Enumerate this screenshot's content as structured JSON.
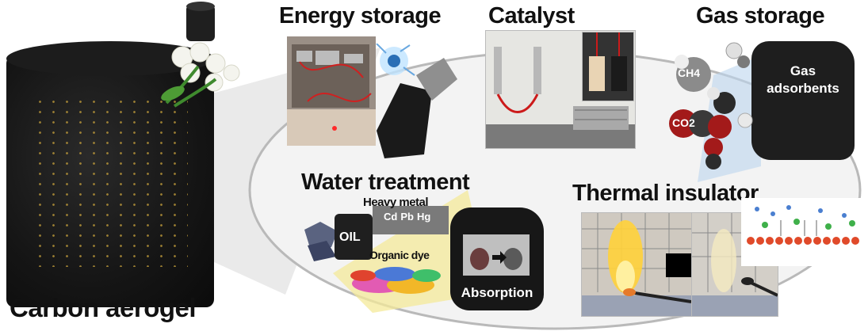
{
  "center_label": "Carbon aerogel",
  "applications": {
    "energy_storage": "Energy storage",
    "catalyst": "Catalyst",
    "gas_storage": "Gas storage",
    "water_treatment": "Water treatment",
    "thermal_insulator": "Thermal insulator"
  },
  "gas": {
    "adsorbents_line1": "Gas",
    "adsorbents_line2": "adsorbents",
    "ch4": "CH4",
    "co2": "CO2"
  },
  "water": {
    "heavy_metal": "Heavy metal",
    "oil": "OIL",
    "organic_dye": "Organic dye",
    "absorption": "Absorption",
    "elements": [
      "Cd",
      "Pb",
      "Hg"
    ]
  },
  "colors": {
    "aerogel": "#161616",
    "ellipse_fill": "#efefef",
    "accent_yellow": "#f1e06a",
    "co2_red": "#a01818",
    "flame": "#ffd23a"
  }
}
